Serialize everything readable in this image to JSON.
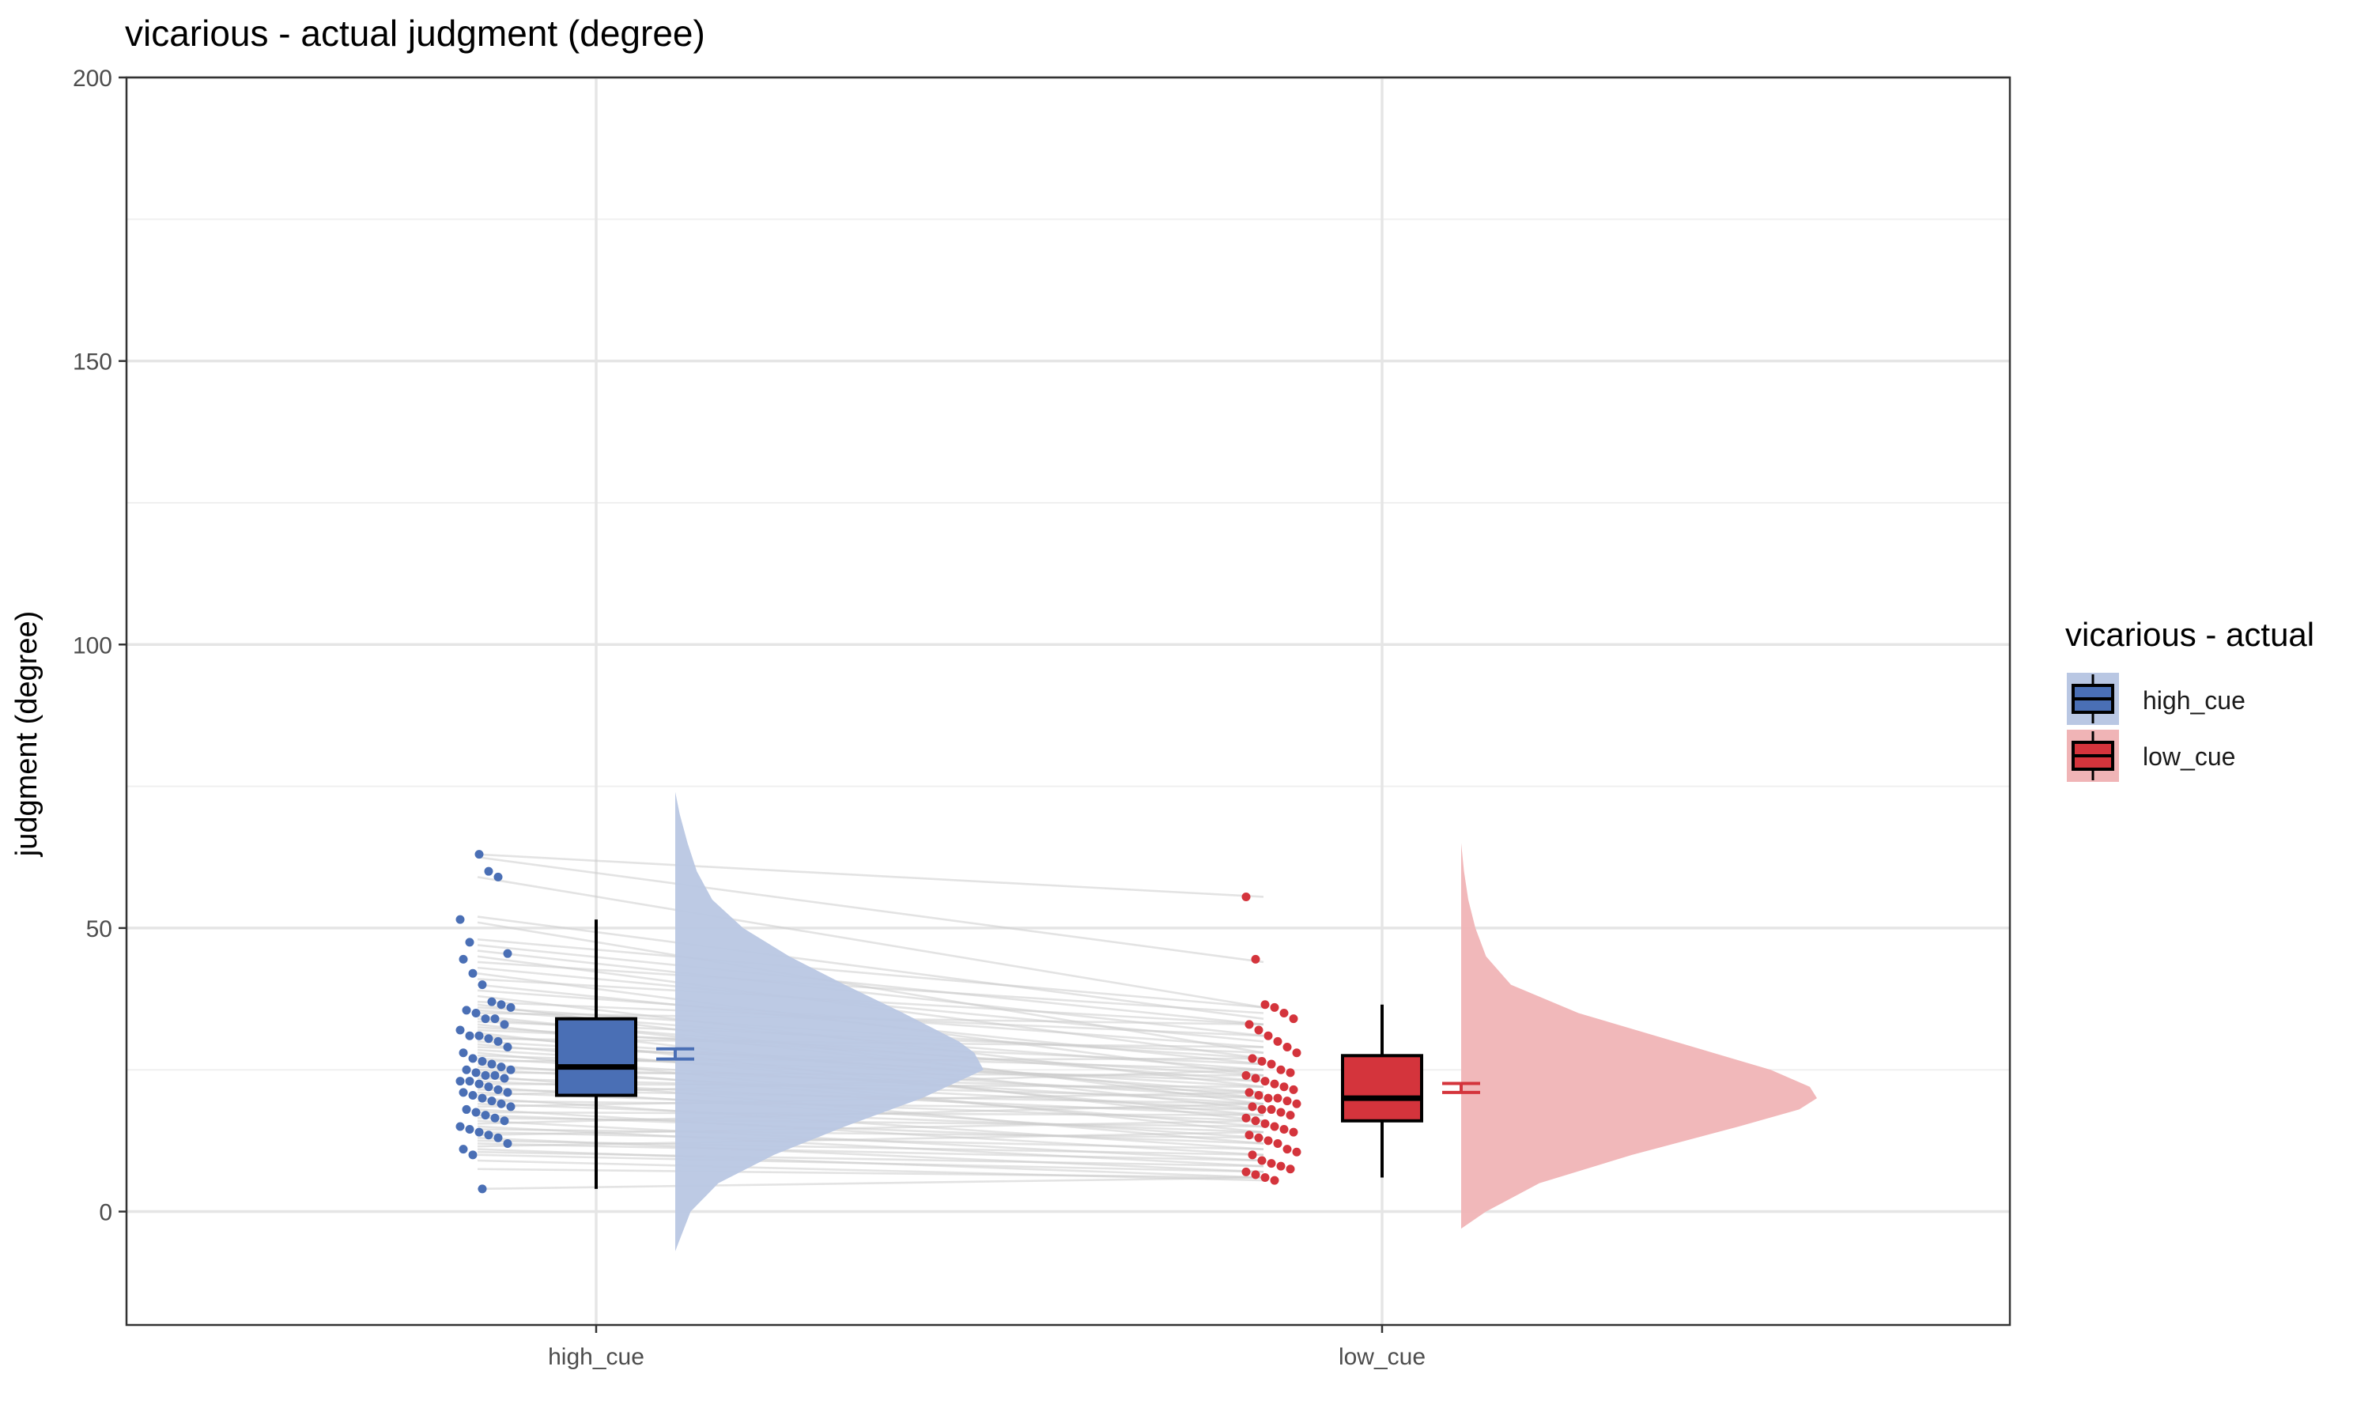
{
  "chart_data": {
    "type": "raincloud",
    "title": "vicarious  - actual judgment (degree)",
    "xlabel": "",
    "ylabel": "judgment (degree)",
    "ylim": [
      -20,
      200
    ],
    "yticks": [
      0,
      50,
      100,
      150,
      200
    ],
    "categories": [
      "high_cue",
      "low_cue"
    ],
    "grid": true,
    "legend": {
      "title": "vicarious  - actual",
      "placement": "right",
      "entries": [
        "high_cue",
        "low_cue"
      ]
    },
    "colors": {
      "high_cue": "#4a6fb5",
      "high_cue_cloud": "#b9c7e3",
      "low_cue": "#d4343c",
      "low_cue_cloud": "#f0b4b6",
      "pair_line": "#cccccc",
      "grid": "#e5e5e5"
    },
    "boxplots": [
      {
        "category": "high_cue",
        "whisker_low": 4,
        "q1": 20.5,
        "median": 25.5,
        "q3": 34,
        "whisker_high": 51.5,
        "mean": 27.8,
        "se": 0.9
      },
      {
        "category": "low_cue",
        "whisker_low": 6,
        "q1": 16,
        "median": 20,
        "q3": 27.5,
        "whisker_high": 36.5,
        "mean": 21.8,
        "se": 0.8
      }
    ],
    "densities": [
      {
        "category": "high_cue",
        "y": [
          -7,
          0,
          5,
          10,
          15,
          20,
          25,
          28,
          30,
          35,
          40,
          45,
          50,
          55,
          60,
          65,
          70,
          74
        ],
        "density": [
          0,
          0.05,
          0.14,
          0.32,
          0.55,
          0.8,
          1.0,
          0.97,
          0.92,
          0.74,
          0.55,
          0.37,
          0.22,
          0.12,
          0.07,
          0.04,
          0.015,
          0
        ]
      },
      {
        "category": "low_cue",
        "y": [
          -3,
          0,
          5,
          10,
          15,
          18,
          20,
          22,
          25,
          30,
          35,
          40,
          45,
          50,
          55,
          60,
          65
        ],
        "density": [
          0,
          0.07,
          0.22,
          0.48,
          0.78,
          0.95,
          1.0,
          0.98,
          0.87,
          0.6,
          0.33,
          0.14,
          0.07,
          0.04,
          0.02,
          0.008,
          0
        ]
      }
    ],
    "points": {
      "high_cue": [
        51.5,
        47.5,
        63,
        60,
        59,
        45.5,
        44.5,
        42,
        40,
        37,
        36.5,
        36,
        35.5,
        35,
        34,
        34,
        33,
        32,
        31,
        31,
        30.5,
        30,
        29,
        28,
        27,
        26.5,
        26,
        25.5,
        25,
        25,
        24.5,
        24,
        24,
        23.5,
        23,
        23,
        22.5,
        22,
        21.5,
        21,
        21,
        20.5,
        20,
        19.5,
        19,
        18.5,
        18,
        17.5,
        17,
        16.5,
        16,
        15,
        14.5,
        14,
        13.5,
        13,
        12,
        11,
        10,
        4
      ],
      "low_cue": [
        55.5,
        44.5,
        36.5,
        36,
        35,
        34,
        33,
        32,
        31,
        30,
        29,
        28,
        27,
        26.5,
        26,
        25,
        24.5,
        24,
        23.5,
        23,
        22.5,
        22,
        21.5,
        21,
        20.5,
        20,
        20,
        19.5,
        19,
        18.5,
        18,
        18,
        17.5,
        17,
        16.5,
        16,
        15.5,
        15,
        14.5,
        14,
        13.5,
        13,
        12.5,
        12,
        11,
        10.5,
        10,
        9,
        8.5,
        8,
        7.5,
        7,
        6.5,
        6,
        5.5
      ]
    },
    "pairs": [
      [
        63,
        55.5
      ],
      [
        62.5,
        44
      ],
      [
        59,
        36
      ],
      [
        52,
        34
      ],
      [
        51,
        28
      ],
      [
        48,
        36
      ],
      [
        47,
        33
      ],
      [
        46,
        31
      ],
      [
        45,
        27
      ],
      [
        44,
        35
      ],
      [
        43,
        30
      ],
      [
        42,
        24
      ],
      [
        41,
        33
      ],
      [
        40,
        26
      ],
      [
        39,
        29
      ],
      [
        38,
        22
      ],
      [
        37,
        31
      ],
      [
        36.5,
        19
      ],
      [
        36,
        27
      ],
      [
        35.5,
        25
      ],
      [
        35,
        33
      ],
      [
        34.5,
        20
      ],
      [
        34,
        23
      ],
      [
        33.5,
        28
      ],
      [
        33,
        18
      ],
      [
        32.5,
        24
      ],
      [
        32,
        26
      ],
      [
        31.5,
        16
      ],
      [
        31,
        21
      ],
      [
        30.5,
        29
      ],
      [
        30,
        22
      ],
      [
        29.5,
        17
      ],
      [
        29,
        25
      ],
      [
        28.5,
        20
      ],
      [
        28,
        14
      ],
      [
        27.5,
        23
      ],
      [
        27,
        19
      ],
      [
        26.5,
        27
      ],
      [
        26,
        15
      ],
      [
        25.5,
        21
      ],
      [
        25,
        18
      ],
      [
        24.5,
        24
      ],
      [
        24,
        12
      ],
      [
        23.5,
        20
      ],
      [
        23,
        17
      ],
      [
        22.5,
        22
      ],
      [
        22,
        13
      ],
      [
        21.5,
        19
      ],
      [
        21,
        16
      ],
      [
        20.5,
        25
      ],
      [
        20,
        11
      ],
      [
        19.5,
        18
      ],
      [
        19,
        14
      ],
      [
        18.5,
        21
      ],
      [
        18,
        10
      ],
      [
        17.5,
        17
      ],
      [
        17,
        12
      ],
      [
        16.5,
        15
      ],
      [
        16,
        9
      ],
      [
        15.5,
        19
      ],
      [
        15,
        8
      ],
      [
        14.5,
        13
      ],
      [
        14,
        11
      ],
      [
        13.5,
        16
      ],
      [
        13,
        7
      ],
      [
        12.5,
        10
      ],
      [
        12,
        9
      ],
      [
        11.5,
        14
      ],
      [
        11,
        6
      ],
      [
        10.5,
        8
      ],
      [
        10,
        7
      ],
      [
        9,
        5.5
      ],
      [
        7.5,
        6
      ],
      [
        4,
        6
      ]
    ]
  }
}
